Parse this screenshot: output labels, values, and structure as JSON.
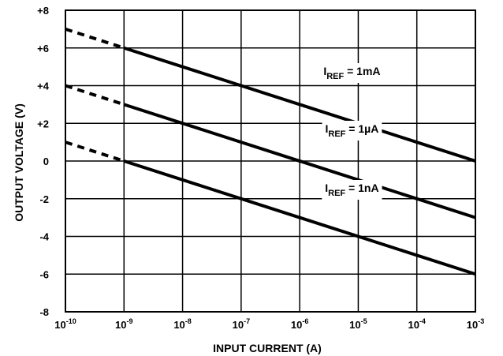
{
  "chart_data": {
    "type": "line",
    "xlabel": "INPUT CURRENT (A)",
    "ylabel": "OUTPUT VOLTAGE (V)",
    "x_scale": "log",
    "xlim": [
      1e-10,
      0.001
    ],
    "ylim": [
      -8,
      8
    ],
    "grid": true,
    "x_ticks": [
      {
        "base": "10",
        "exp": "-10"
      },
      {
        "base": "10",
        "exp": "-9"
      },
      {
        "base": "10",
        "exp": "-8"
      },
      {
        "base": "10",
        "exp": "-7"
      },
      {
        "base": "10",
        "exp": "-6"
      },
      {
        "base": "10",
        "exp": "-5"
      },
      {
        "base": "10",
        "exp": "-4"
      },
      {
        "base": "10",
        "exp": "-3"
      }
    ],
    "y_ticks": [
      "+8",
      "+6",
      "+4",
      "+2",
      "0",
      "-2",
      "-4",
      "-6",
      "-8"
    ],
    "series": [
      {
        "label_main": "I",
        "label_sub": "REF",
        "label_rest": " = 1mA",
        "extrapolated": {
          "x": [
            1e-10,
            1e-09
          ],
          "y": [
            7,
            6
          ]
        },
        "x": [
          1e-09,
          0.001
        ],
        "y": [
          6,
          0
        ]
      },
      {
        "label_main": "I",
        "label_sub": "REF",
        "label_rest": " = 1µA",
        "extrapolated": {
          "x": [
            1e-10,
            1e-09
          ],
          "y": [
            4,
            3
          ]
        },
        "x": [
          1e-09,
          0.001
        ],
        "y": [
          3,
          -3
        ]
      },
      {
        "label_main": "I",
        "label_sub": "REF",
        "label_rest": " = 1nA",
        "extrapolated": {
          "x": [
            1e-10,
            1e-09
          ],
          "y": [
            1,
            0
          ]
        },
        "x": [
          1e-09,
          0.001
        ],
        "y": [
          0,
          -6
        ]
      }
    ]
  }
}
